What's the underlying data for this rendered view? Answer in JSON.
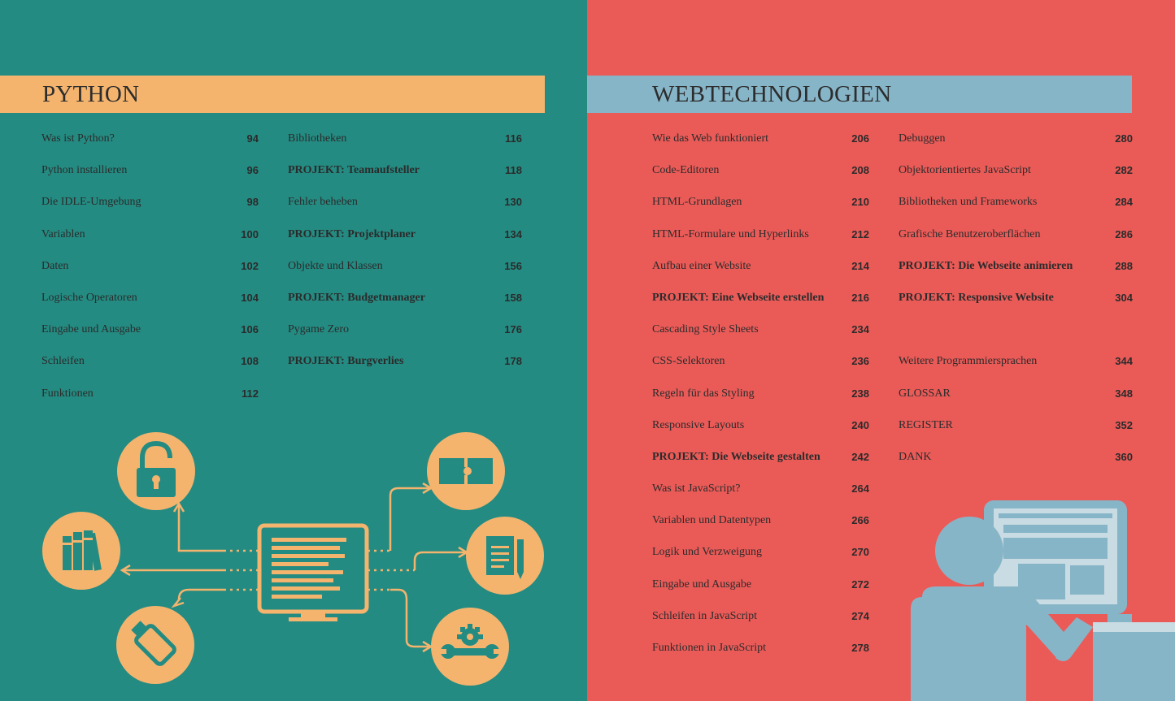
{
  "left": {
    "title": "PYTHON",
    "col1": [
      {
        "label": "Was ist Python?",
        "page": "94"
      },
      {
        "label": "Python installieren",
        "page": "96"
      },
      {
        "label": "Die IDLE-Umgebung",
        "page": "98"
      },
      {
        "label": "Variablen",
        "page": "100"
      },
      {
        "label": "Daten",
        "page": "102"
      },
      {
        "label": "Logische Operatoren",
        "page": "104"
      },
      {
        "label": "Eingabe und Ausgabe",
        "page": "106"
      },
      {
        "label": "Schleifen",
        "page": "108"
      },
      {
        "label": "Funktionen",
        "page": "112"
      }
    ],
    "col2": [
      {
        "label": "Bibliotheken",
        "page": "116"
      },
      {
        "label": "PROJEKT: Teamaufsteller",
        "page": "118",
        "bold": true
      },
      {
        "label": "Fehler beheben",
        "page": "130"
      },
      {
        "label": "PROJEKT: Projektplaner",
        "page": "134",
        "bold": true
      },
      {
        "label": "Objekte und Klassen",
        "page": "156"
      },
      {
        "label": "PROJEKT: Budgetmanager",
        "page": "158",
        "bold": true
      },
      {
        "label": "Pygame Zero",
        "page": "176"
      },
      {
        "label": "PROJEKT: Burgverlies",
        "page": "178",
        "bold": true
      }
    ],
    "illustration": {
      "icons": [
        "lock-icon",
        "books-icon",
        "usb-stick-icon",
        "monitor-icon",
        "puzzle-icon",
        "document-pencil-icon",
        "gear-wrench-icon"
      ],
      "colors": {
        "background": "#248b82",
        "icon_fill": "#f4b46e",
        "icon_stroke": "#248b82"
      }
    }
  },
  "right": {
    "title": "WEBTECHNOLOGIEN",
    "col1": [
      {
        "label": "Wie das Web funktioniert",
        "page": "206"
      },
      {
        "label": "Code-Editoren",
        "page": "208"
      },
      {
        "label": "HTML-Grundlagen",
        "page": "210"
      },
      {
        "label": "HTML-Formulare und Hyperlinks",
        "page": "212"
      },
      {
        "label": "Aufbau einer Website",
        "page": "214"
      },
      {
        "label": "PROJEKT: Eine Webseite erstellen",
        "page": "216",
        "bold": true
      },
      {
        "label": "Cascading Style Sheets",
        "page": "234"
      },
      {
        "label": "CSS-Selektoren",
        "page": "236"
      },
      {
        "label": "Regeln für das Styling",
        "page": "238"
      },
      {
        "label": "Responsive Layouts",
        "page": "240"
      },
      {
        "label": "PROJEKT: Die Webseite gestalten",
        "page": "242",
        "bold": true
      },
      {
        "label": "Was ist JavaScript?",
        "page": "264"
      },
      {
        "label": "Variablen und Datentypen",
        "page": "266"
      },
      {
        "label": "Logik und Verzweigung",
        "page": "270"
      },
      {
        "label": "Eingabe und Ausgabe",
        "page": "272"
      },
      {
        "label": "Schleifen in JavaScript",
        "page": "274"
      },
      {
        "label": "Funktionen in JavaScript",
        "page": "278"
      }
    ],
    "col2": [
      {
        "label": "Debuggen",
        "page": "280"
      },
      {
        "label": "Objektorientiertes JavaScript",
        "page": "282"
      },
      {
        "label": "Bibliotheken und Frameworks",
        "page": "284"
      },
      {
        "label": "Grafische Benutzeroberflächen",
        "page": "286"
      },
      {
        "label": "PROJEKT: Die Webseite animieren",
        "page": "288",
        "bold": true
      },
      {
        "label": "PROJEKT: Responsive Website",
        "page": "304",
        "bold": true
      },
      {
        "label": "",
        "page": "",
        "gap": true
      },
      {
        "label": "Weitere Programmiersprachen",
        "page": "344"
      },
      {
        "label": "GLOSSAR",
        "page": "348"
      },
      {
        "label": "REGISTER",
        "page": "352"
      },
      {
        "label": "DANK",
        "page": "360"
      }
    ],
    "illustration": {
      "icons": [
        "person-at-computer-icon"
      ],
      "colors": {
        "background": "#ea5b58",
        "figure": "#87b5c8",
        "screen": "#c9dbe3"
      }
    }
  }
}
